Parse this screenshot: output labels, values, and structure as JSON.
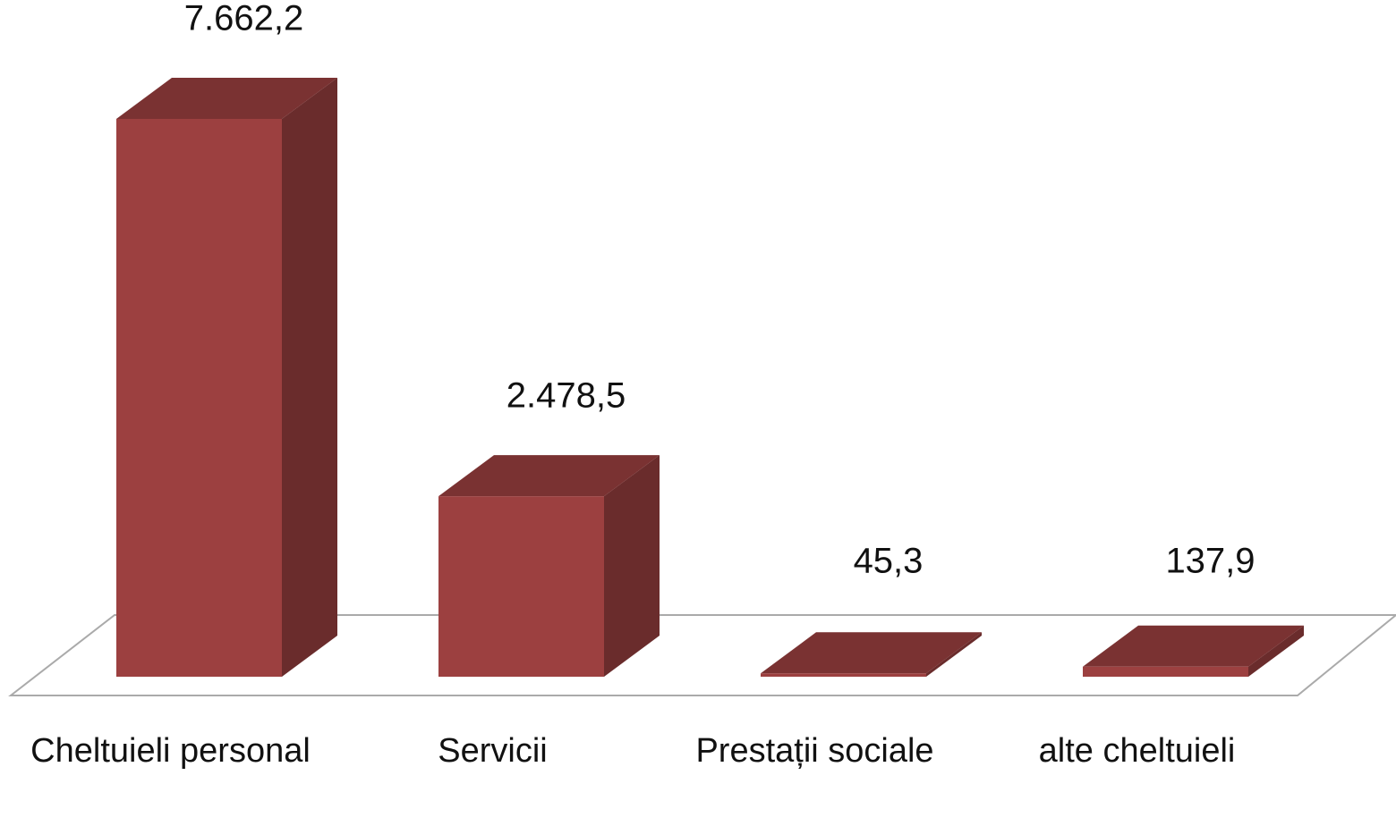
{
  "chart_data": {
    "type": "bar",
    "categories": [
      "Cheltuieli personal",
      "Servicii",
      "Prestații sociale",
      "alte cheltuieli"
    ],
    "values": [
      7662.2,
      2478.5,
      45.3,
      137.9
    ],
    "value_labels": [
      "7.662,2",
      "2.478,5",
      "45,3",
      "137,9"
    ],
    "color": "#9c4040"
  }
}
